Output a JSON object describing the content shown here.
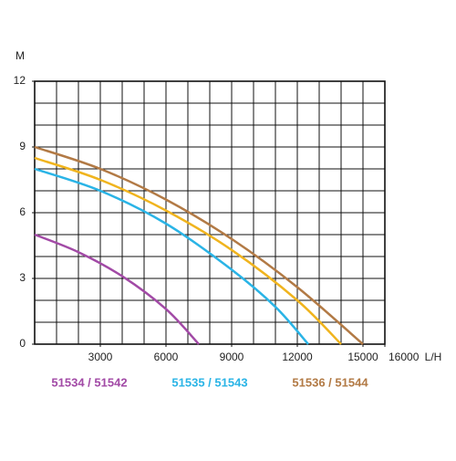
{
  "chart_data": {
    "type": "line",
    "y_label": "M",
    "x_label": "L/H",
    "xlim": [
      0,
      16000
    ],
    "ylim": [
      0,
      12
    ],
    "xticks": [
      3000,
      6000,
      9000,
      12000,
      15000,
      16000
    ],
    "yticks": [
      0,
      3,
      6,
      9,
      12
    ],
    "grid": true,
    "grid_step": {
      "x": 1000,
      "y": 1
    },
    "series": [
      {
        "name": "51534 / 51542",
        "color": "#a24aa6",
        "x": [
          0,
          2000,
          4000,
          6000,
          7500
        ],
        "values": [
          5,
          4.2,
          3.1,
          1.6,
          0
        ]
      },
      {
        "name": "51535 / 51543",
        "color": "#2ab4e6",
        "x": [
          0,
          3000,
          6000,
          9000,
          11000,
          12500
        ],
        "values": [
          8,
          7.0,
          5.5,
          3.4,
          1.7,
          0
        ]
      },
      {
        "name": null,
        "color": "#f0b41e",
        "x": [
          0,
          3000,
          6000,
          9000,
          12000,
          14000
        ],
        "values": [
          8.5,
          7.5,
          6.1,
          4.3,
          2.0,
          0
        ]
      },
      {
        "name": "51536 / 51544",
        "color": "#b27a45",
        "x": [
          0,
          3000,
          6000,
          9000,
          12000,
          15000
        ],
        "values": [
          9,
          8.0,
          6.6,
          4.8,
          2.6,
          0
        ]
      }
    ]
  }
}
